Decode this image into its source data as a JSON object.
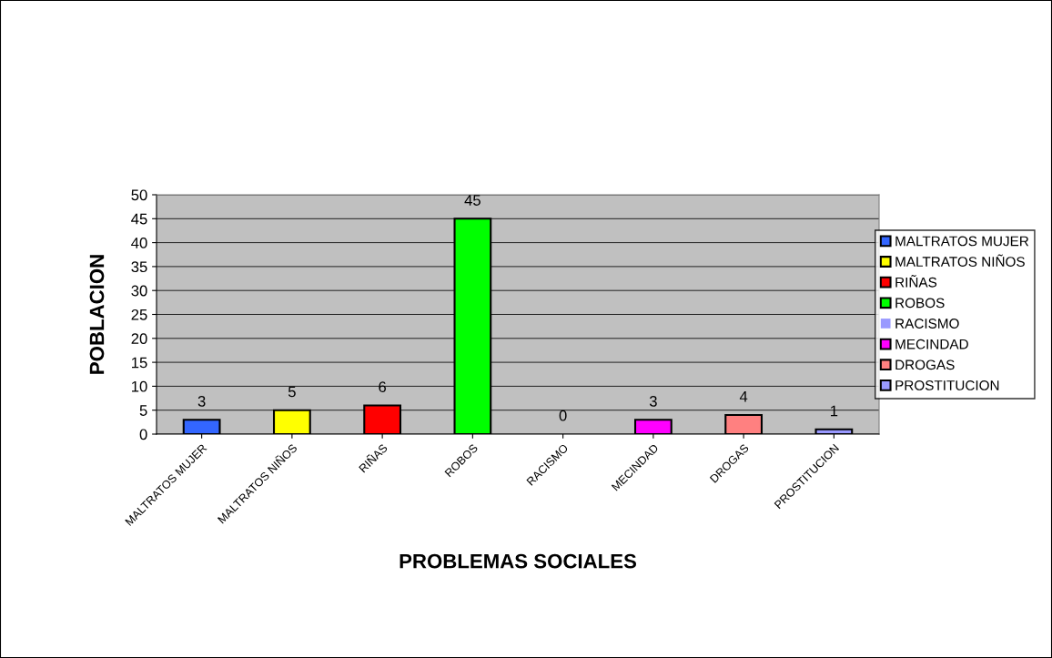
{
  "chart_data": {
    "type": "bar",
    "xlabel": "PROBLEMAS SOCIALES",
    "ylabel": "POBLACION",
    "categories": [
      "MALTRATOS MUJER",
      "MALTRATOS NIÑOS",
      "RIÑAS",
      "ROBOS",
      "RACISMO",
      "MECINDAD",
      "DROGAS",
      "PROSTITUCION"
    ],
    "series": [
      {
        "name": "MALTRATOS MUJER",
        "color": "#3366ff",
        "values": [
          3,
          null,
          null,
          null,
          null,
          null,
          null,
          null
        ]
      },
      {
        "name": "MALTRATOS NIÑOS",
        "color": "#ffff00",
        "values": [
          null,
          5,
          null,
          null,
          null,
          null,
          null,
          null
        ]
      },
      {
        "name": "RIÑAS",
        "color": "#ff0000",
        "values": [
          null,
          null,
          6,
          null,
          null,
          null,
          null,
          null
        ]
      },
      {
        "name": "ROBOS",
        "color": "#00ff00",
        "values": [
          null,
          null,
          null,
          45,
          null,
          null,
          null,
          null
        ]
      },
      {
        "name": "RACISMO",
        "color": "#9999ff",
        "values": [
          null,
          null,
          null,
          null,
          0,
          null,
          null,
          null
        ]
      },
      {
        "name": "MECINDAD",
        "color": "#ff00ff",
        "values": [
          null,
          null,
          null,
          null,
          null,
          3,
          null,
          null
        ]
      },
      {
        "name": "DROGAS",
        "color": "#ff8080",
        "values": [
          null,
          null,
          null,
          null,
          null,
          null,
          4,
          null
        ]
      },
      {
        "name": "PROSTITUCION",
        "color": "#9999ff",
        "values": [
          null,
          null,
          null,
          null,
          null,
          null,
          null,
          1
        ]
      }
    ],
    "ylim": [
      0,
      50
    ],
    "yticks": [
      0,
      5,
      10,
      15,
      20,
      25,
      30,
      35,
      40,
      45,
      50
    ],
    "grid": "y",
    "legend": "right",
    "data_labels": true
  }
}
